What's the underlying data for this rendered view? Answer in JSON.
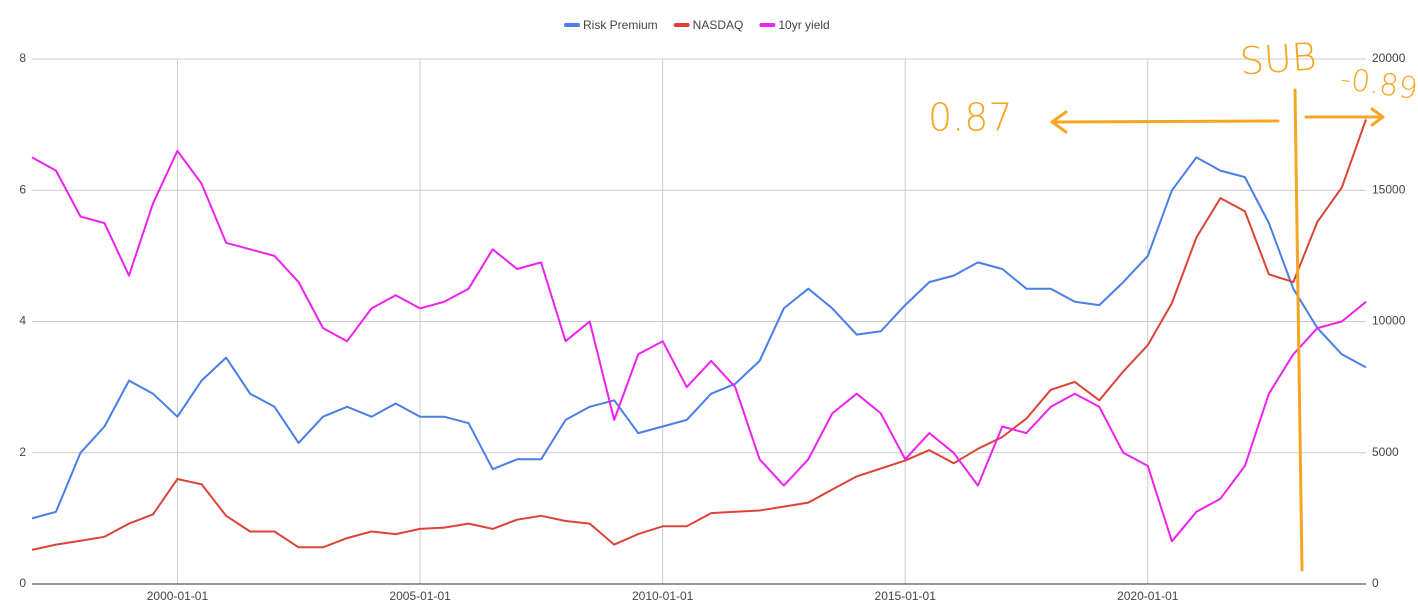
{
  "chart_data": {
    "type": "line",
    "x": [
      "1997-01-01",
      "1997-07-01",
      "1998-01-01",
      "1998-07-01",
      "1999-01-01",
      "1999-07-01",
      "2000-01-01",
      "2000-07-01",
      "2001-01-01",
      "2001-07-01",
      "2002-01-01",
      "2002-07-01",
      "2003-01-01",
      "2003-07-01",
      "2004-01-01",
      "2004-07-01",
      "2005-01-01",
      "2005-07-01",
      "2006-01-01",
      "2006-07-01",
      "2007-01-01",
      "2007-07-01",
      "2008-01-01",
      "2008-07-01",
      "2009-01-01",
      "2009-07-01",
      "2010-01-01",
      "2010-07-01",
      "2011-01-01",
      "2011-07-01",
      "2012-01-01",
      "2012-07-01",
      "2013-01-01",
      "2013-07-01",
      "2014-01-01",
      "2014-07-01",
      "2015-01-01",
      "2015-07-01",
      "2016-01-01",
      "2016-07-01",
      "2017-01-01",
      "2017-07-01",
      "2018-01-01",
      "2018-07-01",
      "2019-01-01",
      "2019-07-01",
      "2020-01-01",
      "2020-07-01",
      "2021-01-01",
      "2021-07-01",
      "2022-01-01",
      "2022-07-01",
      "2023-01-01",
      "2023-07-01",
      "2024-01-01",
      "2024-07-01"
    ],
    "series": [
      {
        "name": "Risk Premium",
        "color": "#4a7ee8",
        "values": [
          1.0,
          1.1,
          2.0,
          2.4,
          3.1,
          2.9,
          2.55,
          3.1,
          3.45,
          2.9,
          2.7,
          2.15,
          2.55,
          2.7,
          2.55,
          2.75,
          2.55,
          2.55,
          2.45,
          1.75,
          1.9,
          1.9,
          2.5,
          2.7,
          2.8,
          2.3,
          2.4,
          2.5,
          2.9,
          3.05,
          3.4,
          4.2,
          4.5,
          4.2,
          3.8,
          3.85,
          4.25,
          4.6,
          4.7,
          4.9,
          4.8,
          4.5,
          4.5,
          4.3,
          4.25,
          4.6,
          5.0,
          6.0,
          6.5,
          6.3,
          6.2,
          5.5,
          4.5,
          3.9,
          3.5,
          3.3
        ]
      },
      {
        "name": "NASDAQ",
        "color": "#db4437",
        "axis": "y2",
        "values": [
          1300,
          1500,
          1650,
          1800,
          2300,
          2650,
          4000,
          3800,
          2600,
          2000,
          2000,
          1400,
          1400,
          1750,
          2000,
          1900,
          2100,
          2150,
          2300,
          2100,
          2450,
          2600,
          2400,
          2300,
          1500,
          1900,
          2200,
          2200,
          2700,
          2750,
          2800,
          2950,
          3100,
          3600,
          4100,
          4400,
          4700,
          5100,
          4600,
          5150,
          5600,
          6300,
          7400,
          7700,
          7000,
          8100,
          9100,
          10700,
          13200,
          14700,
          14200,
          11800,
          11500,
          13800,
          15100,
          17700
        ]
      },
      {
        "name": "10yr yield",
        "color": "#ee22ee",
        "values": [
          6.5,
          6.3,
          5.6,
          5.5,
          4.7,
          5.8,
          6.6,
          6.1,
          5.2,
          5.1,
          5.0,
          4.6,
          3.9,
          3.7,
          4.2,
          4.4,
          4.2,
          4.3,
          4.5,
          5.1,
          4.8,
          4.9,
          3.7,
          4.0,
          2.5,
          3.5,
          3.7,
          3.0,
          3.4,
          3.0,
          1.9,
          1.5,
          1.9,
          2.6,
          2.9,
          2.6,
          1.9,
          2.3,
          2.0,
          1.5,
          2.4,
          2.3,
          2.7,
          2.9,
          2.7,
          2.0,
          1.8,
          0.65,
          1.1,
          1.3,
          1.8,
          2.9,
          3.5,
          3.9,
          4.0,
          4.3
        ]
      }
    ],
    "xlim": [
      "1997-01-01",
      "2024-07-01"
    ],
    "xticks": [
      "2000-01-01",
      "2005-01-01",
      "2010-01-01",
      "2015-01-01",
      "2020-01-01"
    ],
    "ylim": [
      0,
      8
    ],
    "yticks": [
      0,
      2,
      4,
      6,
      8
    ],
    "y2lim": [
      0,
      20000
    ],
    "y2ticks": [
      0,
      5000,
      10000,
      15000,
      20000
    ],
    "grid": true,
    "legend": "top",
    "annotations": [
      "SUB",
      "0.87",
      "-0.89"
    ]
  }
}
